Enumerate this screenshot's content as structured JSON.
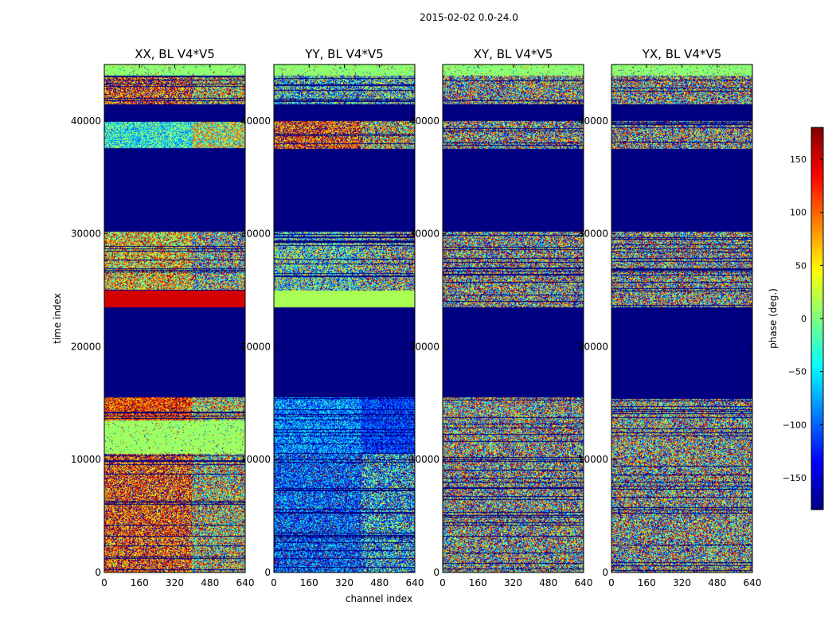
{
  "chart_data": {
    "type": "heatmap",
    "suptitle": "2015-02-02 0.0-24.0",
    "xlabel": "channel index",
    "ylabel": "time index",
    "xlim": [
      0,
      640
    ],
    "ylim": [
      0,
      45000
    ],
    "xticks": [
      0,
      160,
      320,
      480,
      640
    ],
    "yticks": [
      0,
      10000,
      20000,
      30000,
      40000
    ],
    "panels": [
      {
        "title": "XX, BL V4*V5",
        "bands": [
          {
            "y": [
              0,
              10500
            ],
            "kind": "noise",
            "mean": 115,
            "spread": 110,
            "right_mean": 40,
            "right_spread": 160
          },
          {
            "y": [
              10500,
              13500
            ],
            "kind": "solid",
            "value": 10,
            "speckle": true
          },
          {
            "y": [
              13500,
              15500
            ],
            "kind": "noise",
            "mean": 120,
            "spread": 80,
            "right_mean": 40,
            "right_spread": 150
          },
          {
            "y": [
              15500,
              23500
            ],
            "kind": "empty"
          },
          {
            "y": [
              23500,
              25000
            ],
            "kind": "solid",
            "value": 150
          },
          {
            "y": [
              25000,
              30200
            ],
            "kind": "noise",
            "mean": 60,
            "spread": 130,
            "right_mean": 0,
            "right_spread": 170
          },
          {
            "y": [
              30200,
              37500
            ],
            "kind": "empty"
          },
          {
            "y": [
              37500,
              40000
            ],
            "kind": "noise",
            "mean": -40,
            "spread": 80,
            "right_mean": 20,
            "right_spread": 120
          },
          {
            "y": [
              40000,
              41500
            ],
            "kind": "empty"
          },
          {
            "y": [
              41500,
              44000
            ],
            "kind": "noise",
            "mean": 120,
            "spread": 120,
            "right_mean": 60,
            "right_spread": 150
          },
          {
            "y": [
              44000,
              45000
            ],
            "kind": "solid",
            "value": 5,
            "speckle": true
          }
        ]
      },
      {
        "title": "YY, BL V4*V5",
        "bands": [
          {
            "y": [
              0,
              10500
            ],
            "kind": "noise",
            "mean": -110,
            "spread": 90,
            "right_mean": -80,
            "right_spread": 130
          },
          {
            "y": [
              10500,
              15500
            ],
            "kind": "noise",
            "mean": -90,
            "spread": 80,
            "right_mean": -120,
            "right_spread": 60
          },
          {
            "y": [
              15500,
              23500
            ],
            "kind": "empty"
          },
          {
            "y": [
              23500,
              25000
            ],
            "kind": "solid",
            "value": 15
          },
          {
            "y": [
              25000,
              30200
            ],
            "kind": "noise",
            "mean": -30,
            "spread": 140,
            "right_mean": -20,
            "right_spread": 170
          },
          {
            "y": [
              30200,
              37500
            ],
            "kind": "empty"
          },
          {
            "y": [
              37500,
              40000
            ],
            "kind": "noise",
            "mean": 120,
            "spread": 110,
            "right_mean": 60,
            "right_spread": 150
          },
          {
            "y": [
              40000,
              41500
            ],
            "kind": "empty"
          },
          {
            "y": [
              41500,
              44000
            ],
            "kind": "noise",
            "mean": -60,
            "spread": 140,
            "right_mean": -40,
            "right_spread": 150
          },
          {
            "y": [
              44000,
              45000
            ],
            "kind": "solid",
            "value": 5,
            "speckle": true
          }
        ]
      },
      {
        "title": "XY, BL V4*V5",
        "bands": [
          {
            "y": [
              0,
              10500
            ],
            "kind": "noise",
            "mean": 0,
            "spread": 180,
            "right_mean": 0,
            "right_spread": 180
          },
          {
            "y": [
              10500,
              15500
            ],
            "kind": "noise",
            "mean": 10,
            "spread": 170,
            "right_mean": 0,
            "right_spread": 180
          },
          {
            "y": [
              15500,
              23500
            ],
            "kind": "empty"
          },
          {
            "y": [
              23500,
              30200
            ],
            "kind": "noise",
            "mean": 0,
            "spread": 180,
            "right_mean": 0,
            "right_spread": 180
          },
          {
            "y": [
              30200,
              37500
            ],
            "kind": "empty"
          },
          {
            "y": [
              37500,
              40000
            ],
            "kind": "noise",
            "mean": 0,
            "spread": 180,
            "right_mean": 0,
            "right_spread": 180
          },
          {
            "y": [
              40000,
              41500
            ],
            "kind": "empty"
          },
          {
            "y": [
              41500,
              44000
            ],
            "kind": "noise",
            "mean": 0,
            "spread": 180,
            "right_mean": 0,
            "right_spread": 180
          },
          {
            "y": [
              44000,
              45000
            ],
            "kind": "solid",
            "value": 5,
            "speckle": true
          }
        ]
      },
      {
        "title": "YX, BL V4*V5",
        "bands": [
          {
            "y": [
              0,
              10500
            ],
            "kind": "noise",
            "mean": 0,
            "spread": 180,
            "right_mean": 0,
            "right_spread": 180
          },
          {
            "y": [
              10500,
              15500
            ],
            "kind": "noise",
            "mean": 10,
            "spread": 170,
            "right_mean": 0,
            "right_spread": 180
          },
          {
            "y": [
              15500,
              23500
            ],
            "kind": "empty"
          },
          {
            "y": [
              23500,
              30200
            ],
            "kind": "noise",
            "mean": 0,
            "spread": 180,
            "right_mean": 0,
            "right_spread": 180
          },
          {
            "y": [
              30200,
              37500
            ],
            "kind": "empty"
          },
          {
            "y": [
              37500,
              40000
            ],
            "kind": "noise",
            "mean": 0,
            "spread": 180,
            "right_mean": 0,
            "right_spread": 180
          },
          {
            "y": [
              40000,
              41500
            ],
            "kind": "empty"
          },
          {
            "y": [
              41500,
              44000
            ],
            "kind": "noise",
            "mean": 0,
            "spread": 180,
            "right_mean": 0,
            "right_spread": 180
          },
          {
            "y": [
              44000,
              45000
            ],
            "kind": "solid",
            "value": 5,
            "speckle": true
          }
        ]
      }
    ],
    "colorbar": {
      "label": "phase (deg.)",
      "range": [
        -180,
        180
      ],
      "ticks": [
        -150,
        -100,
        -50,
        0,
        50,
        100,
        150
      ],
      "tick_labels": [
        "−150",
        "−100",
        "−50",
        "0",
        "50",
        "100",
        "150"
      ],
      "colormap": "jet"
    }
  }
}
